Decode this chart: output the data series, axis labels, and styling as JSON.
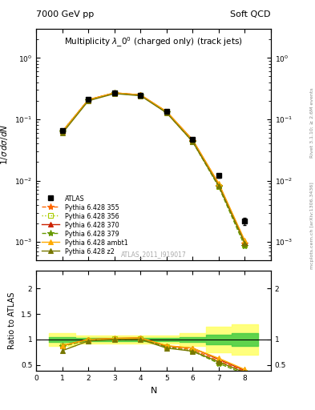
{
  "title_main": "Multiplicity $\\lambda\\_0^0$ (charged only) (track jets)",
  "header_left": "7000 GeV pp",
  "header_right": "Soft QCD",
  "right_label_top": "Rivet 3.1.10; ≥ 2.6M events",
  "right_label_bot": "mcplots.cern.ch [arXiv:1306.3436]",
  "watermark": "ATLAS_2011_I919017",
  "ylabel_main": "$1/\\sigma\\, d\\sigma/dN$",
  "ylabel_ratio": "Ratio to ATLAS",
  "xlabel": "N",
  "x_data": [
    1,
    2,
    3,
    4,
    5,
    6,
    7,
    8
  ],
  "atlas_y": [
    0.065,
    0.21,
    0.27,
    0.245,
    0.135,
    0.047,
    0.012,
    0.0022
  ],
  "atlas_yerr": [
    0.003,
    0.005,
    0.006,
    0.006,
    0.004,
    0.002,
    0.001,
    0.0003
  ],
  "atlas_color": "#000000",
  "series": [
    {
      "label": "Pythia 6.428 355",
      "color": "#ff6600",
      "linestyle": "--",
      "marker": "*",
      "markersize": 6,
      "y": [
        0.063,
        0.207,
        0.268,
        0.248,
        0.13,
        0.044,
        0.0082,
        0.00095
      ],
      "ratio": [
        0.87,
        0.99,
        1.01,
        1.02,
        0.86,
        0.8,
        0.58,
        0.37
      ]
    },
    {
      "label": "Pythia 6.428 356",
      "color": "#aacc00",
      "linestyle": ":",
      "marker": "s",
      "markersize": 4,
      "y": [
        0.063,
        0.207,
        0.268,
        0.248,
        0.13,
        0.043,
        0.008,
        0.0009
      ],
      "ratio": [
        0.87,
        0.99,
        1.01,
        1.02,
        0.85,
        0.78,
        0.55,
        0.35
      ]
    },
    {
      "label": "Pythia 6.428 370",
      "color": "#cc2200",
      "linestyle": "-",
      "marker": "^",
      "markersize": 4,
      "y": [
        0.063,
        0.208,
        0.27,
        0.25,
        0.133,
        0.046,
        0.0088,
        0.001
      ],
      "ratio": [
        0.88,
        1.0,
        1.02,
        1.03,
        0.87,
        0.83,
        0.61,
        0.39
      ]
    },
    {
      "label": "Pythia 6.428 379",
      "color": "#669900",
      "linestyle": "--",
      "marker": "*",
      "markersize": 6,
      "y": [
        0.063,
        0.206,
        0.266,
        0.246,
        0.13,
        0.043,
        0.0079,
        0.00085
      ],
      "ratio": [
        0.87,
        0.98,
        1.0,
        1.01,
        0.85,
        0.77,
        0.53,
        0.32
      ]
    },
    {
      "label": "Pythia 6.428 ambt1",
      "color": "#ffaa00",
      "linestyle": "-",
      "marker": "^",
      "markersize": 4,
      "y": [
        0.063,
        0.209,
        0.27,
        0.25,
        0.134,
        0.046,
        0.009,
        0.00105
      ],
      "ratio": [
        0.88,
        1.0,
        1.02,
        1.03,
        0.88,
        0.83,
        0.63,
        0.41
      ]
    },
    {
      "label": "Pythia 6.428 z2",
      "color": "#777700",
      "linestyle": "-",
      "marker": "^",
      "markersize": 4,
      "y": [
        0.059,
        0.2,
        0.262,
        0.242,
        0.127,
        0.043,
        0.0082,
        0.00095
      ],
      "ratio": [
        0.78,
        0.97,
        1.0,
        1.0,
        0.83,
        0.77,
        0.56,
        0.35
      ]
    }
  ],
  "band_yellow": {
    "x": [
      0.5,
      1.5,
      1.5,
      2.5,
      2.5,
      3.5,
      3.5,
      4.5,
      4.5,
      5.5,
      5.5,
      6.5,
      6.5,
      7.5,
      7.5,
      8.5
    ],
    "lo": [
      0.87,
      0.87,
      0.92,
      0.92,
      0.92,
      0.92,
      0.92,
      0.92,
      0.92,
      0.92,
      0.87,
      0.87,
      0.75,
      0.75,
      0.7,
      0.7
    ],
    "hi": [
      1.13,
      1.13,
      1.08,
      1.08,
      1.08,
      1.08,
      1.08,
      1.08,
      1.08,
      1.08,
      1.13,
      1.13,
      1.25,
      1.25,
      1.3,
      1.3
    ]
  },
  "band_green": {
    "x": [
      0.5,
      1.5,
      1.5,
      2.5,
      2.5,
      3.5,
      3.5,
      4.5,
      4.5,
      5.5,
      5.5,
      6.5,
      6.5,
      7.5,
      7.5,
      8.5
    ],
    "lo": [
      0.95,
      0.95,
      0.97,
      0.97,
      0.97,
      0.97,
      0.97,
      0.97,
      0.97,
      0.97,
      0.95,
      0.95,
      0.9,
      0.9,
      0.88,
      0.88
    ],
    "hi": [
      1.05,
      1.05,
      1.03,
      1.03,
      1.03,
      1.03,
      1.03,
      1.03,
      1.03,
      1.03,
      1.05,
      1.05,
      1.1,
      1.1,
      1.12,
      1.12
    ]
  },
  "ylim_main": [
    0.0005,
    3.0
  ],
  "ylim_ratio": [
    0.38,
    2.35
  ],
  "xlim": [
    0,
    9
  ]
}
